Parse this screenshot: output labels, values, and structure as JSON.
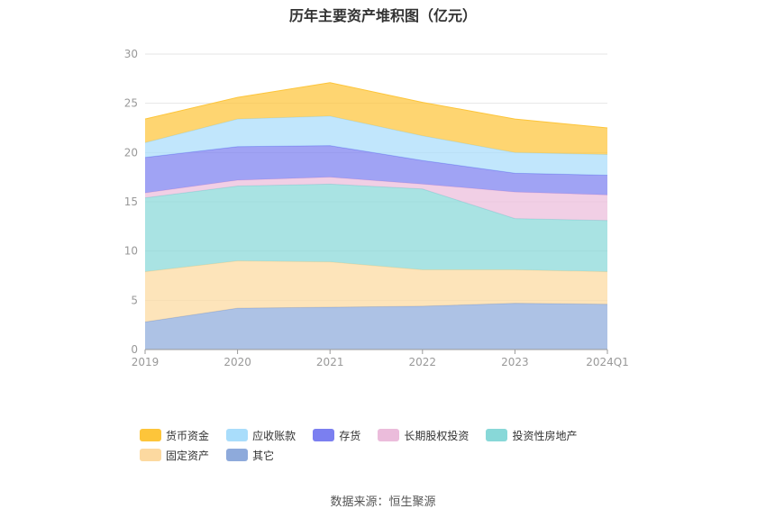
{
  "chart_data": {
    "type": "area",
    "stacked": true,
    "title": "历年主要资产堆积图（亿元）",
    "categories": [
      "2019",
      "2020",
      "2021",
      "2022",
      "2023",
      "2024Q1"
    ],
    "ylim": [
      0,
      30
    ],
    "yticks": [
      0,
      5,
      10,
      15,
      20,
      25,
      30
    ],
    "grid": true,
    "legend_position": "bottom",
    "series": [
      {
        "name": "其它",
        "color": "#8eaadb",
        "values": [
          2.8,
          4.2,
          4.3,
          4.4,
          4.7,
          4.6
        ]
      },
      {
        "name": "固定资产",
        "color": "#fcd9a0",
        "values": [
          5.1,
          4.8,
          4.6,
          3.7,
          3.4,
          3.3
        ]
      },
      {
        "name": "投资性房地产",
        "color": "#88d8d8",
        "values": [
          7.5,
          7.6,
          7.9,
          8.2,
          5.2,
          5.2
        ]
      },
      {
        "name": "长期股权投资",
        "color": "#ebbcdb",
        "values": [
          0.5,
          0.6,
          0.7,
          0.5,
          2.7,
          2.6
        ]
      },
      {
        "name": "存货",
        "color": "#7b7ff0",
        "values": [
          3.6,
          3.4,
          3.2,
          2.4,
          1.9,
          2.0
        ]
      },
      {
        "name": "应收账款",
        "color": "#a9ddfb",
        "values": [
          1.5,
          2.8,
          3.0,
          2.5,
          2.1,
          2.1
        ]
      },
      {
        "name": "货币资金",
        "color": "#fdc53a",
        "values": [
          2.4,
          2.2,
          3.4,
          3.4,
          3.4,
          2.7
        ]
      }
    ]
  },
  "legend": {
    "items": [
      {
        "label": "货币资金",
        "color": "#fdc53a"
      },
      {
        "label": "应收账款",
        "color": "#a9ddfb"
      },
      {
        "label": "存货",
        "color": "#7b7ff0"
      },
      {
        "label": "长期股权投资",
        "color": "#ebbcdb"
      },
      {
        "label": "投资性房地产",
        "color": "#88d8d8"
      },
      {
        "label": "固定资产",
        "color": "#fcd9a0"
      },
      {
        "label": "其它",
        "color": "#8eaadb"
      }
    ]
  },
  "source": "数据来源：恒生聚源"
}
